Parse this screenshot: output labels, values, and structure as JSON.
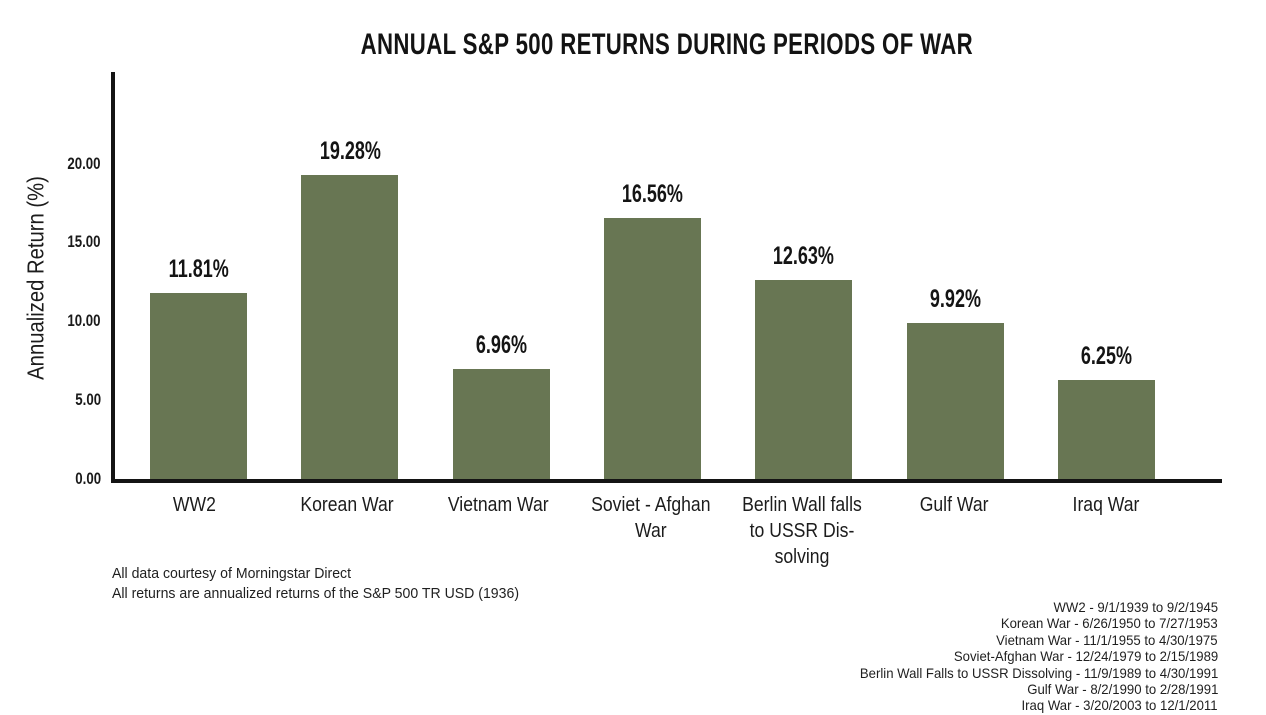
{
  "chart_data": {
    "type": "bar",
    "title": "ANNUAL S&P 500 RETURNS DURING PERIODS OF WAR",
    "ylabel": "Annualized Return (%)",
    "xlabel": "",
    "categories": [
      "WW2",
      "Korean War",
      "Vietnam War",
      "Soviet - Afghan\nWar",
      "Berlin Wall falls\nto USSR Dis-\nsolving",
      "Gulf War",
      "Iraq War"
    ],
    "values": [
      11.81,
      19.28,
      6.96,
      16.56,
      12.63,
      9.92,
      6.25
    ],
    "value_labels": [
      "11.81%",
      "19.28%",
      "6.96%",
      "16.56%",
      "12.63%",
      "9.92%",
      "6.25%"
    ],
    "yticks": [
      0,
      5,
      10,
      15,
      20
    ],
    "ytick_labels": [
      "0.00",
      "5.00",
      "10.00",
      "15.00",
      "20.00"
    ],
    "ylim": [
      0,
      25.8
    ],
    "grid": false,
    "legend_position": "none",
    "bar_color": "#687653",
    "axis_color": "#141414",
    "text_color": "#161616",
    "background_color": "#ffffff"
  },
  "footnotes": {
    "left": [
      "All data courtesy of Morningstar Direct",
      "All returns are annualized returns of the S&P 500 TR USD (1936)"
    ],
    "right": [
      "WW2 - 9/1/1939 to 9/2/1945",
      "Korean War - 6/26/1950 to 7/27/1953",
      "Vietnam War - 11/1/1955 to 4/30/1975",
      "Soviet-Afghan War - 12/24/1979 to 2/15/1989",
      "Berlin Wall Falls to USSR Dissolving - 11/9/1989 to 4/30/1991",
      "Gulf War - 8/2/1990 to 2/28/1991",
      "Iraq War - 3/20/2003 to 12/1/2011"
    ]
  }
}
